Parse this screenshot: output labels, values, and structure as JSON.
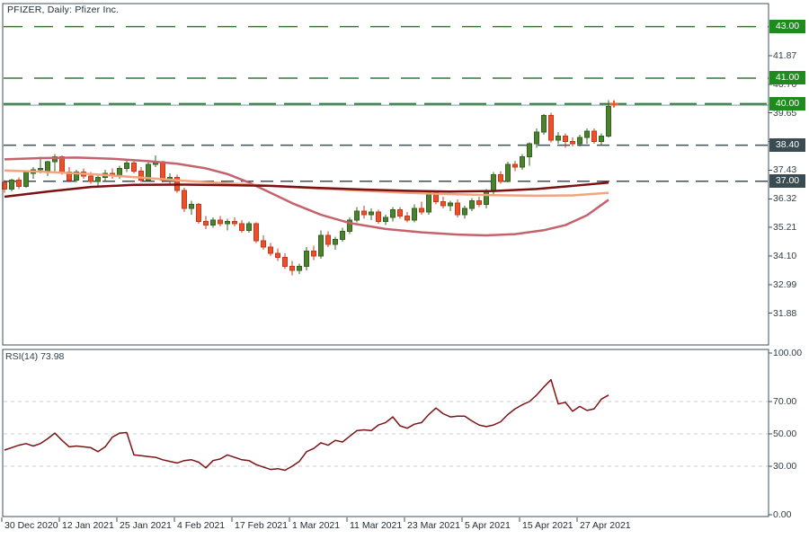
{
  "window": {
    "title": "PFIZER, Daily:  Pfizer Inc."
  },
  "colors": {
    "background": "#FFFFFF",
    "border": "#3E4F57",
    "tick_text": "#2E3F47",
    "title_text": "#1E2B32",
    "bull_fill": "#4D8030",
    "bull_stroke": "#33621C",
    "bear_fill": "#E8512A",
    "bear_stroke": "#C03A1C",
    "level_green": "#2F7D33",
    "badge_green": "#1F8B1F",
    "level_dark": "#3E5156",
    "badge_dark": "#3A4B52",
    "last_close_line": "#A7BCC9",
    "last_price_marker": "#F4581E",
    "rsi_line": "#7B1416",
    "rsi_grid": "#CCCCCC"
  },
  "price_axis": {
    "ticks": [
      "41.87",
      "40.76",
      "39.65",
      "38.54",
      "37.43",
      "36.32",
      "35.21",
      "34.10",
      "32.99",
      "31.88"
    ]
  },
  "levels": [
    {
      "label": "43.00",
      "price": 43.0,
      "style": "green"
    },
    {
      "label": "41.00",
      "price": 41.0,
      "style": "green"
    },
    {
      "label": "40.00",
      "price": 40.0,
      "style": "green-long"
    },
    {
      "label": "38.40",
      "price": 38.4,
      "style": "dark"
    },
    {
      "label": "37.00",
      "price": 37.0,
      "style": "dark"
    }
  ],
  "last_price": {
    "line_price": 39.95,
    "marker_price": 40.0
  },
  "rsi_panel": {
    "label": "RSI(14) 73.98",
    "ticks": [
      {
        "label": "100.00",
        "value": 100
      },
      {
        "label": "70.00",
        "value": 70
      },
      {
        "label": "50.00",
        "value": 50
      },
      {
        "label": "30.00",
        "value": 30
      },
      {
        "label": "0.00",
        "value": 0
      }
    ],
    "grid_values": [
      70,
      50,
      30
    ]
  },
  "time_axis": {
    "ticks": [
      2,
      66,
      130,
      194,
      258,
      322,
      386,
      450,
      514,
      578,
      642
    ],
    "labels": [
      "30 Dec 2020",
      "12 Jan 2021",
      "25 Jan 2021",
      "4 Feb 2021",
      "17 Feb 2021",
      "1 Mar 2021",
      "11 Mar 2021",
      "23 Mar 2021",
      "5 Apr 2021",
      "15 Apr 2021",
      "27 Apr 2021"
    ]
  },
  "chart_data": {
    "type": "candlestick",
    "symbol": "PFIZER",
    "timeframe": "Daily",
    "company": "Pfizer Inc.",
    "price_axis_range": {
      "top_tick": 41.87,
      "bottom_tick": 31.88,
      "tick_step": 1.11
    },
    "bars": [
      [
        36.95,
        37.05,
        36.55,
        36.7
      ],
      [
        36.7,
        37.1,
        36.6,
        37.05
      ],
      [
        37.05,
        37.15,
        36.7,
        36.8
      ],
      [
        36.8,
        37.4,
        36.75,
        37.35
      ],
      [
        37.3,
        37.55,
        37.1,
        37.45
      ],
      [
        37.45,
        37.95,
        37.3,
        37.5
      ],
      [
        37.4,
        37.8,
        37.2,
        37.75
      ],
      [
        37.75,
        38.05,
        37.4,
        37.95
      ],
      [
        37.95,
        38.0,
        37.25,
        37.35
      ],
      [
        37.35,
        37.55,
        36.95,
        37.05
      ],
      [
        37.05,
        37.45,
        36.95,
        37.35
      ],
      [
        37.35,
        37.5,
        37.1,
        37.2
      ],
      [
        37.2,
        37.35,
        36.9,
        37.0
      ],
      [
        37.0,
        37.25,
        36.8,
        37.15
      ],
      [
        37.15,
        37.45,
        37.0,
        37.3
      ],
      [
        37.3,
        37.5,
        37.1,
        37.2
      ],
      [
        37.2,
        37.6,
        37.1,
        37.5
      ],
      [
        37.5,
        37.8,
        37.35,
        37.7
      ],
      [
        37.7,
        37.85,
        37.3,
        37.4
      ],
      [
        37.4,
        37.55,
        36.95,
        37.05
      ],
      [
        37.05,
        37.75,
        37.0,
        37.65
      ],
      [
        37.65,
        38.0,
        37.55,
        37.75
      ],
      [
        37.75,
        37.8,
        36.95,
        37.05
      ],
      [
        37.05,
        37.3,
        36.85,
        37.15
      ],
      [
        37.15,
        37.25,
        36.55,
        36.65
      ],
      [
        36.65,
        36.75,
        35.8,
        35.95
      ],
      [
        35.95,
        36.25,
        35.7,
        36.1
      ],
      [
        36.1,
        36.15,
        35.35,
        35.45
      ],
      [
        35.45,
        35.65,
        35.15,
        35.3
      ],
      [
        35.3,
        35.6,
        35.2,
        35.5
      ],
      [
        35.5,
        35.65,
        35.25,
        35.35
      ],
      [
        35.35,
        35.55,
        35.1,
        35.45
      ],
      [
        35.45,
        35.6,
        35.25,
        35.35
      ],
      [
        35.35,
        35.5,
        35.0,
        35.1
      ],
      [
        35.1,
        35.45,
        35.0,
        35.35
      ],
      [
        35.35,
        35.4,
        34.6,
        34.7
      ],
      [
        34.7,
        34.9,
        34.35,
        34.45
      ],
      [
        34.45,
        34.6,
        34.1,
        34.2
      ],
      [
        34.2,
        34.4,
        33.9,
        34.05
      ],
      [
        34.05,
        34.2,
        33.6,
        33.7
      ],
      [
        33.7,
        33.9,
        33.35,
        33.55
      ],
      [
        33.55,
        33.8,
        33.4,
        33.7
      ],
      [
        33.7,
        34.45,
        33.55,
        34.3
      ],
      [
        34.3,
        34.5,
        33.95,
        34.1
      ],
      [
        34.1,
        35.1,
        34.0,
        34.9
      ],
      [
        34.9,
        35.05,
        34.45,
        34.55
      ],
      [
        34.55,
        34.85,
        34.35,
        34.75
      ],
      [
        34.75,
        35.2,
        34.65,
        35.05
      ],
      [
        35.05,
        35.6,
        34.95,
        35.5
      ],
      [
        35.5,
        36.0,
        35.4,
        35.85
      ],
      [
        35.85,
        36.05,
        35.55,
        35.7
      ],
      [
        35.7,
        35.95,
        35.5,
        35.8
      ],
      [
        35.8,
        35.9,
        35.35,
        35.45
      ],
      [
        35.45,
        35.7,
        35.3,
        35.6
      ],
      [
        35.6,
        36.0,
        35.45,
        35.9
      ],
      [
        35.9,
        36.0,
        35.55,
        35.65
      ],
      [
        35.65,
        35.8,
        35.4,
        35.5
      ],
      [
        35.5,
        36.1,
        35.4,
        35.95
      ],
      [
        35.95,
        36.2,
        35.7,
        35.8
      ],
      [
        35.8,
        36.65,
        35.7,
        36.55
      ],
      [
        36.55,
        36.65,
        36.1,
        36.2
      ],
      [
        36.2,
        36.4,
        35.95,
        36.05
      ],
      [
        36.05,
        36.25,
        35.85,
        36.15
      ],
      [
        36.15,
        36.3,
        35.6,
        35.7
      ],
      [
        35.7,
        36.05,
        35.55,
        35.95
      ],
      [
        35.95,
        36.35,
        35.85,
        36.25
      ],
      [
        36.25,
        36.4,
        36.0,
        36.1
      ],
      [
        36.1,
        36.7,
        35.95,
        36.6
      ],
      [
        36.6,
        37.35,
        36.5,
        37.25
      ],
      [
        37.25,
        37.4,
        36.9,
        37.0
      ],
      [
        37.0,
        37.75,
        36.95,
        37.65
      ],
      [
        37.65,
        37.8,
        37.4,
        37.55
      ],
      [
        37.55,
        38.05,
        37.45,
        37.95
      ],
      [
        37.95,
        38.5,
        37.6,
        38.45
      ],
      [
        38.45,
        39.05,
        38.3,
        38.9
      ],
      [
        38.9,
        39.6,
        38.8,
        39.55
      ],
      [
        39.55,
        39.65,
        38.5,
        38.6
      ],
      [
        38.6,
        38.9,
        38.45,
        38.75
      ],
      [
        38.75,
        38.85,
        38.3,
        38.55
      ],
      [
        38.55,
        38.7,
        38.35,
        38.45
      ],
      [
        38.45,
        38.8,
        38.35,
        38.7
      ],
      [
        38.7,
        39.05,
        38.45,
        38.95
      ],
      [
        38.95,
        39.05,
        38.45,
        38.55
      ],
      [
        38.55,
        38.85,
        38.4,
        38.75
      ],
      [
        38.75,
        40.15,
        38.7,
        39.9
      ]
    ],
    "moving_averages": [
      {
        "name": "ma-rose",
        "color": "#C4636E",
        "width": 2.5,
        "points": [
          [
            0,
            37.85
          ],
          [
            5,
            37.9
          ],
          [
            10,
            37.92
          ],
          [
            15,
            37.87
          ],
          [
            20,
            37.78
          ],
          [
            24,
            37.68
          ],
          [
            28,
            37.5
          ],
          [
            31,
            37.28
          ],
          [
            34,
            36.95
          ],
          [
            37,
            36.55
          ],
          [
            40,
            36.15
          ],
          [
            44,
            35.7
          ],
          [
            48,
            35.38
          ],
          [
            53,
            35.15
          ],
          [
            58,
            35.02
          ],
          [
            63,
            34.93
          ],
          [
            67,
            34.9
          ],
          [
            71,
            34.95
          ],
          [
            75,
            35.1
          ],
          [
            78,
            35.3
          ],
          [
            81,
            35.68
          ],
          [
            84,
            36.28
          ]
        ]
      },
      {
        "name": "ma-salmon",
        "color": "#F4A37C",
        "width": 2.5,
        "points": [
          [
            0,
            37.42
          ],
          [
            6,
            37.36
          ],
          [
            12,
            37.28
          ],
          [
            18,
            37.16
          ],
          [
            25,
            37.02
          ],
          [
            31,
            36.92
          ],
          [
            37,
            36.82
          ],
          [
            43,
            36.73
          ],
          [
            50,
            36.63
          ],
          [
            56,
            36.55
          ],
          [
            62,
            36.5
          ],
          [
            68,
            36.46
          ],
          [
            74,
            36.44
          ],
          [
            79,
            36.45
          ],
          [
            84,
            36.55
          ]
        ]
      },
      {
        "name": "ma-dark-red",
        "color": "#7B1113",
        "width": 2.5,
        "points": [
          [
            0,
            36.4
          ],
          [
            6,
            36.6
          ],
          [
            12,
            36.78
          ],
          [
            18,
            36.86
          ],
          [
            25,
            36.87
          ],
          [
            31,
            36.85
          ],
          [
            37,
            36.82
          ],
          [
            43,
            36.75
          ],
          [
            50,
            36.68
          ],
          [
            56,
            36.63
          ],
          [
            62,
            36.6
          ],
          [
            68,
            36.62
          ],
          [
            74,
            36.7
          ],
          [
            79,
            36.82
          ],
          [
            84,
            36.95
          ]
        ]
      }
    ],
    "rsi": {
      "period": 14,
      "current": 73.98,
      "range": [
        0,
        100
      ],
      "grid": [
        30,
        50,
        70
      ],
      "values": [
        40,
        41.5,
        43,
        44,
        42.5,
        44,
        47,
        50.5,
        46,
        42,
        42.5,
        42,
        41.5,
        39,
        42,
        48,
        50.5,
        50.8,
        37,
        36.5,
        36,
        35.5,
        34,
        33,
        32,
        33.5,
        34,
        32.5,
        29,
        33.5,
        34.5,
        37,
        35.5,
        34,
        33.5,
        31,
        29.5,
        28,
        28.5,
        27.5,
        30,
        33,
        39,
        41,
        44.5,
        43,
        46,
        45,
        48.5,
        52,
        52.5,
        52,
        55.5,
        57,
        60.5,
        55,
        53.5,
        56,
        57,
        62,
        66,
        62.5,
        60.5,
        61,
        61,
        58,
        55.5,
        54.5,
        55.5,
        57.5,
        62,
        65.5,
        68,
        70,
        74,
        79,
        83.5,
        68.5,
        69.5,
        64,
        67,
        64.5,
        65.5,
        71.5,
        73.98
      ]
    }
  }
}
